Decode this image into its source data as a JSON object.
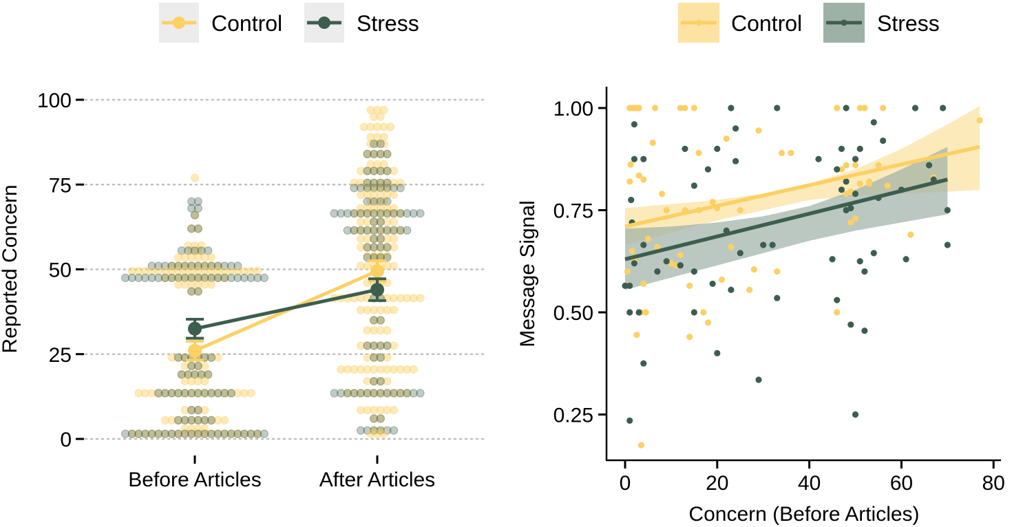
{
  "colors": {
    "control": "#fdd064",
    "stress": "#3d5e4e",
    "control_band": "#fce3a3",
    "stress_band": "#9eb1a6",
    "grid": "#bfbfbf",
    "legend_key_bg": "#ececec"
  },
  "chart_data": [
    {
      "type": "dot-strip-with-means",
      "legend": [
        "Control",
        "Stress"
      ],
      "ylabel": "Reported Concern",
      "xlabel": "",
      "ylim": [
        0,
        100
      ],
      "yticks": [
        0,
        25,
        50,
        75,
        100
      ],
      "ytick_labels": [
        "0",
        "25",
        "50",
        "75",
        "100"
      ],
      "categories": [
        "Before Articles",
        "After Articles"
      ],
      "grid": "horizontal-dotted",
      "means": [
        {
          "name": "Control",
          "values": [
            26,
            49.5
          ],
          "errors": [
            2.8,
            3.0
          ]
        },
        {
          "name": "Stress",
          "values": [
            32.5,
            44
          ],
          "errors": [
            2.8,
            3.2
          ]
        }
      ],
      "dots": {
        "Before Articles": [
          {
            "y": 77,
            "control": 1,
            "stress": 0
          },
          {
            "y": 70,
            "control": 0,
            "stress": 2
          },
          {
            "y": 68,
            "control": 0,
            "stress": 2
          },
          {
            "y": 66,
            "control": 1,
            "stress": 1
          },
          {
            "y": 62,
            "control": 2,
            "stress": 2
          },
          {
            "y": 57,
            "control": 3,
            "stress": 0
          },
          {
            "y": 55.5,
            "control": 2,
            "stress": 5
          },
          {
            "y": 53.5,
            "control": 6,
            "stress": 0
          },
          {
            "y": 51,
            "control": 8,
            "stress": 14
          },
          {
            "y": 49.5,
            "control": 20,
            "stress": 0
          },
          {
            "y": 47.5,
            "control": 10,
            "stress": 22
          },
          {
            "y": 45.5,
            "control": 6,
            "stress": 0
          },
          {
            "y": 43.5,
            "control": 2,
            "stress": 2
          },
          {
            "y": 24,
            "control": 8,
            "stress": 6
          },
          {
            "y": 21.5,
            "control": 4,
            "stress": 2
          },
          {
            "y": 19,
            "control": 5,
            "stress": 5
          },
          {
            "y": 17,
            "control": 4,
            "stress": 0
          },
          {
            "y": 13.5,
            "control": 18,
            "stress": 12
          },
          {
            "y": 8.5,
            "control": 4,
            "stress": 2
          },
          {
            "y": 5.5,
            "control": 10,
            "stress": 6
          },
          {
            "y": 3,
            "control": 4,
            "stress": 0
          },
          {
            "y": 1.5,
            "control": 20,
            "stress": 22
          }
        ],
        "After Articles": [
          {
            "y": 97,
            "control": 3,
            "stress": 0
          },
          {
            "y": 95,
            "control": 2,
            "stress": 0
          },
          {
            "y": 92,
            "control": 5,
            "stress": 0
          },
          {
            "y": 89,
            "control": 3,
            "stress": 0
          },
          {
            "y": 87,
            "control": 3,
            "stress": 2
          },
          {
            "y": 84,
            "control": 4,
            "stress": 4
          },
          {
            "y": 81,
            "control": 3,
            "stress": 0
          },
          {
            "y": 79,
            "control": 6,
            "stress": 4
          },
          {
            "y": 75.5,
            "control": 8,
            "stress": 4
          },
          {
            "y": 74,
            "control": 4,
            "stress": 8
          },
          {
            "y": 72,
            "control": 6,
            "stress": 0
          },
          {
            "y": 70,
            "control": 3,
            "stress": 4
          },
          {
            "y": 68,
            "control": 6,
            "stress": 0
          },
          {
            "y": 66.5,
            "control": 8,
            "stress": 14
          },
          {
            "y": 64,
            "control": 6,
            "stress": 2
          },
          {
            "y": 61.5,
            "control": 8,
            "stress": 10
          },
          {
            "y": 59,
            "control": 6,
            "stress": 2
          },
          {
            "y": 56.5,
            "control": 6,
            "stress": 4
          },
          {
            "y": 54,
            "control": 4,
            "stress": 0
          },
          {
            "y": 53.5,
            "control": 2,
            "stress": 4
          },
          {
            "y": 51,
            "control": 6,
            "stress": 0
          },
          {
            "y": 46,
            "control": 4,
            "stress": 0
          },
          {
            "y": 41.5,
            "control": 14,
            "stress": 2
          },
          {
            "y": 38,
            "control": 6,
            "stress": 0
          },
          {
            "y": 35,
            "control": 2,
            "stress": 2
          },
          {
            "y": 32,
            "control": 4,
            "stress": 0
          },
          {
            "y": 27.5,
            "control": 6,
            "stress": 4
          },
          {
            "y": 24,
            "control": 4,
            "stress": 2
          },
          {
            "y": 20.5,
            "control": 12,
            "stress": 0
          },
          {
            "y": 17,
            "control": 4,
            "stress": 2
          },
          {
            "y": 13.5,
            "control": 10,
            "stress": 14
          },
          {
            "y": 8.5,
            "control": 6,
            "stress": 0
          },
          {
            "y": 6,
            "control": 2,
            "stress": 2
          },
          {
            "y": 2.5,
            "control": 2,
            "stress": 6
          },
          {
            "y": 1.5,
            "control": 3,
            "stress": 0
          }
        ]
      }
    },
    {
      "type": "scatter",
      "legend": [
        "Control",
        "Stress"
      ],
      "xlabel": "Concern (Before Articles)",
      "ylabel": "Message Signal",
      "xlim": [
        -2,
        80
      ],
      "ylim": [
        0.13,
        1.05
      ],
      "xticks": [
        0,
        20,
        40,
        60,
        80
      ],
      "xtick_labels": [
        "0",
        "20",
        "40",
        "60",
        "80"
      ],
      "yticks": [
        0.25,
        0.5,
        0.75,
        1.0
      ],
      "ytick_labels": [
        "0.25",
        "0.50",
        "0.75",
        "1.00"
      ],
      "series": [
        {
          "name": "Control",
          "fit": {
            "x": [
              0,
              77
            ],
            "y": [
              0.71,
              0.905
            ]
          },
          "band": {
            "x": [
              0,
              10,
              20,
              30,
              40,
              50,
              60,
              70,
              77
            ],
            "lower": [
              0.665,
              0.695,
              0.725,
              0.75,
              0.775,
              0.785,
              0.79,
              0.795,
              0.8
            ],
            "upper": [
              0.755,
              0.765,
              0.775,
              0.79,
              0.815,
              0.85,
              0.9,
              0.96,
              1.005
            ]
          },
          "points": [
            [
              0.5,
              0.6
            ],
            [
              1,
              1.0
            ],
            [
              1.5,
              1.0
            ],
            [
              2,
              1.0
            ],
            [
              2.5,
              1.0
            ],
            [
              3,
              1.0
            ],
            [
              1,
              0.82
            ],
            [
              1.2,
              0.862
            ],
            [
              1.5,
              0.65
            ],
            [
              2,
              0.63
            ],
            [
              2.5,
              0.445
            ],
            [
              3,
              0.835
            ],
            [
              3.5,
              0.175
            ],
            [
              3.5,
              0.5
            ],
            [
              4,
              0.57
            ],
            [
              4,
              0.825
            ],
            [
              4.5,
              0.5
            ],
            [
              5,
              0.68
            ],
            [
              6,
              0.915
            ],
            [
              6.5,
              1.0
            ],
            [
              7,
              0.66
            ],
            [
              8,
              0.79
            ],
            [
              9,
              0.75
            ],
            [
              10,
              0.62
            ],
            [
              11,
              0.615
            ],
            [
              12,
              0.64
            ],
            [
              12,
              1.0
            ],
            [
              13,
              1.0
            ],
            [
              13,
              0.75
            ],
            [
              14,
              0.565
            ],
            [
              14,
              0.44
            ],
            [
              15,
              1.0
            ],
            [
              16,
              0.89
            ],
            [
              16,
              0.75
            ],
            [
              17,
              0.5
            ],
            [
              18,
              0.475
            ],
            [
              19,
              0.77
            ],
            [
              20,
              0.755
            ],
            [
              21,
              0.58
            ],
            [
              22,
              0.925
            ],
            [
              23,
              0.66
            ],
            [
              25,
              0.75
            ],
            [
              27,
              0.555
            ],
            [
              28,
              0.605
            ],
            [
              29,
              0.945
            ],
            [
              33,
              0.6
            ],
            [
              34,
              0.89
            ],
            [
              36,
              0.89
            ],
            [
              46,
              1.0
            ],
            [
              46,
              0.5
            ],
            [
              47,
              0.85
            ],
            [
              48,
              0.86
            ],
            [
              48,
              0.79
            ],
            [
              49,
              0.72
            ],
            [
              49,
              0.795
            ],
            [
              50,
              0.73
            ],
            [
              50,
              0.86
            ],
            [
              51,
              1.0
            ],
            [
              51,
              0.815
            ],
            [
              52,
              1.0
            ],
            [
              53,
              0.815
            ],
            [
              53,
              0.82
            ],
            [
              55,
              0.86
            ],
            [
              56,
              1.0
            ],
            [
              57,
              0.81
            ],
            [
              62,
              0.69
            ],
            [
              67,
              0.83
            ],
            [
              77,
              0.97
            ]
          ]
        },
        {
          "name": "Stress",
          "fit": {
            "x": [
              0,
              70
            ],
            "y": [
              0.63,
              0.825
            ]
          },
          "band": {
            "x": [
              0,
              10,
              20,
              30,
              40,
              50,
              60,
              70
            ],
            "lower": [
              0.555,
              0.585,
              0.615,
              0.645,
              0.675,
              0.7,
              0.72,
              0.74
            ],
            "upper": [
              0.705,
              0.71,
              0.72,
              0.735,
              0.76,
              0.8,
              0.85,
              0.905
            ]
          },
          "points": [
            [
              0,
              0.565
            ],
            [
              1,
              0.565
            ],
            [
              1,
              0.235
            ],
            [
              1,
              0.5
            ],
            [
              1.3,
              0.775
            ],
            [
              1.5,
              0.72
            ],
            [
              2,
              0.62
            ],
            [
              2,
              0.96
            ],
            [
              2,
              0.875
            ],
            [
              3,
              0.5
            ],
            [
              4,
              0.875
            ],
            [
              4,
              0.665
            ],
            [
              4,
              0.375
            ],
            [
              7,
              0.6
            ],
            [
              9,
              0.625
            ],
            [
              12,
              0.615
            ],
            [
              13,
              0.9
            ],
            [
              15,
              0.81
            ],
            [
              15,
              0.6
            ],
            [
              15,
              0.5
            ],
            [
              18,
              0.85
            ],
            [
              19,
              0.57
            ],
            [
              20,
              0.4
            ],
            [
              20,
              0.9
            ],
            [
              22,
              0.7
            ],
            [
              23,
              1.0
            ],
            [
              23,
              0.555
            ],
            [
              24,
              0.95
            ],
            [
              24,
              0.87
            ],
            [
              25,
              0.645
            ],
            [
              29,
              0.335
            ],
            [
              30,
              0.665
            ],
            [
              32,
              0.665
            ],
            [
              33,
              1.0
            ],
            [
              33,
              0.535
            ],
            [
              42,
              0.875
            ],
            [
              45,
              0.63
            ],
            [
              46,
              0.53
            ],
            [
              46,
              0.85
            ],
            [
              47,
              0.9
            ],
            [
              47,
              0.8
            ],
            [
              48,
              1.0
            ],
            [
              48,
              0.75
            ],
            [
              48,
              0.82
            ],
            [
              49,
              0.47
            ],
            [
              49,
              0.755
            ],
            [
              50,
              0.875
            ],
            [
              50,
              0.25
            ],
            [
              50,
              0.79
            ],
            [
              51,
              0.625
            ],
            [
              51,
              0.9
            ],
            [
              52,
              0.455
            ],
            [
              52,
              0.6
            ],
            [
              54,
              0.965
            ],
            [
              54,
              0.645
            ],
            [
              55,
              0.78
            ],
            [
              56,
              0.92
            ],
            [
              60,
              0.8
            ],
            [
              61,
              0.63
            ],
            [
              63,
              1.0
            ],
            [
              66,
              0.86
            ],
            [
              67,
              0.825
            ],
            [
              69,
              1.0
            ],
            [
              70,
              0.75
            ],
            [
              70,
              0.665
            ]
          ]
        }
      ]
    }
  ]
}
